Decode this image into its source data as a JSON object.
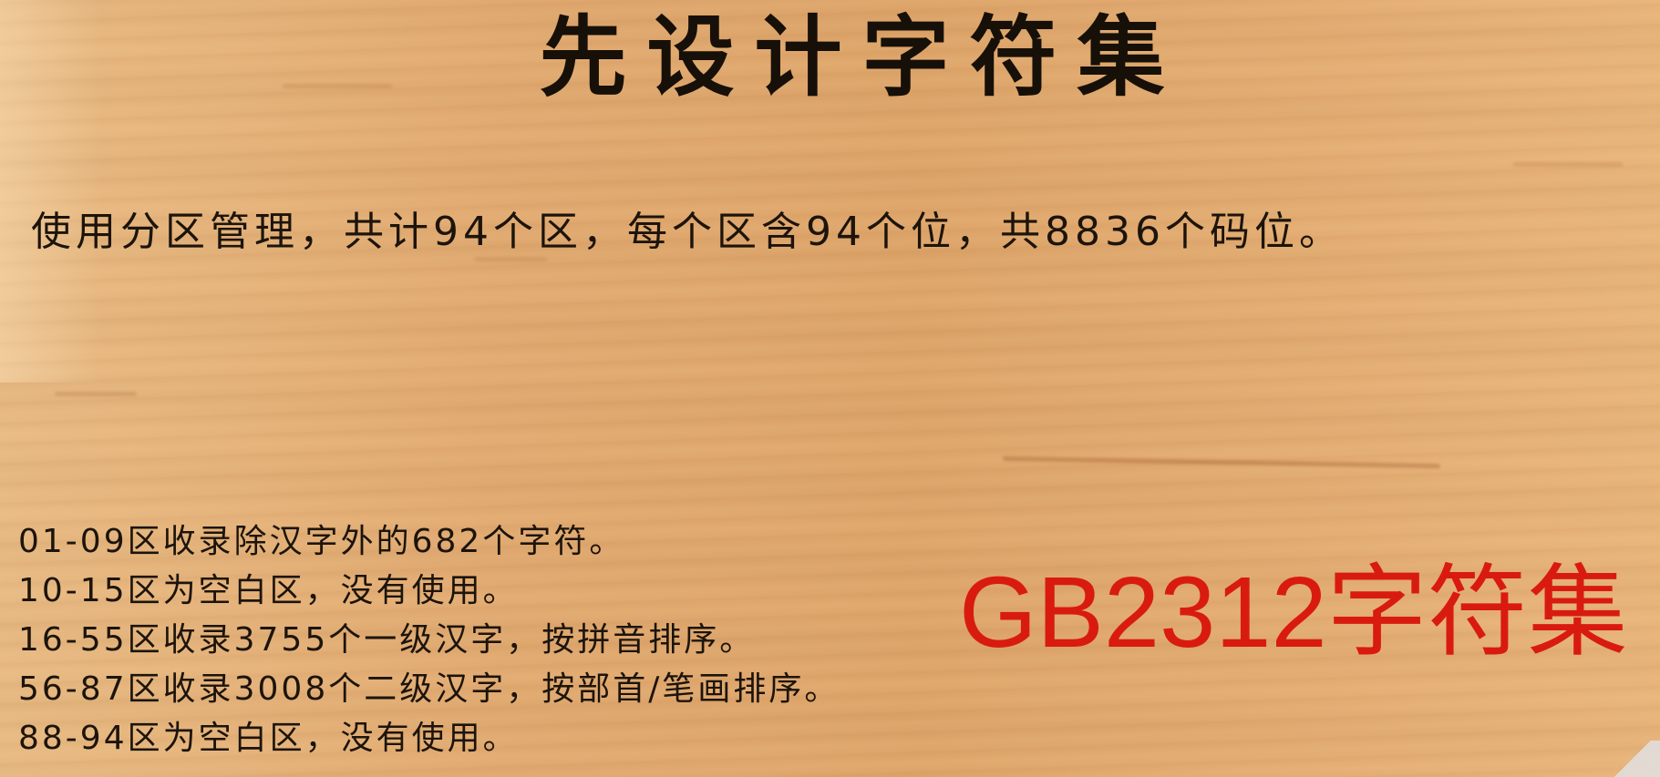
{
  "slide": {
    "title": "先设计字符集",
    "intro": "使用分区管理，共计94个区，每个区含94个位，共8836个码位。",
    "zones": [
      "01-09区收录除汉字外的682个字符。",
      "10-15区为空白区，没有使用。",
      "16-55区收录3755个一级汉字，按拼音排序。",
      "56-87区收录3008个二级汉字，按部首/笔画排序。",
      "88-94区为空白区，没有使用。"
    ],
    "highlight": "GB2312字符集"
  },
  "colors": {
    "background": "#e2ab72",
    "text": "#1c140b",
    "highlight": "#d91b0f"
  }
}
